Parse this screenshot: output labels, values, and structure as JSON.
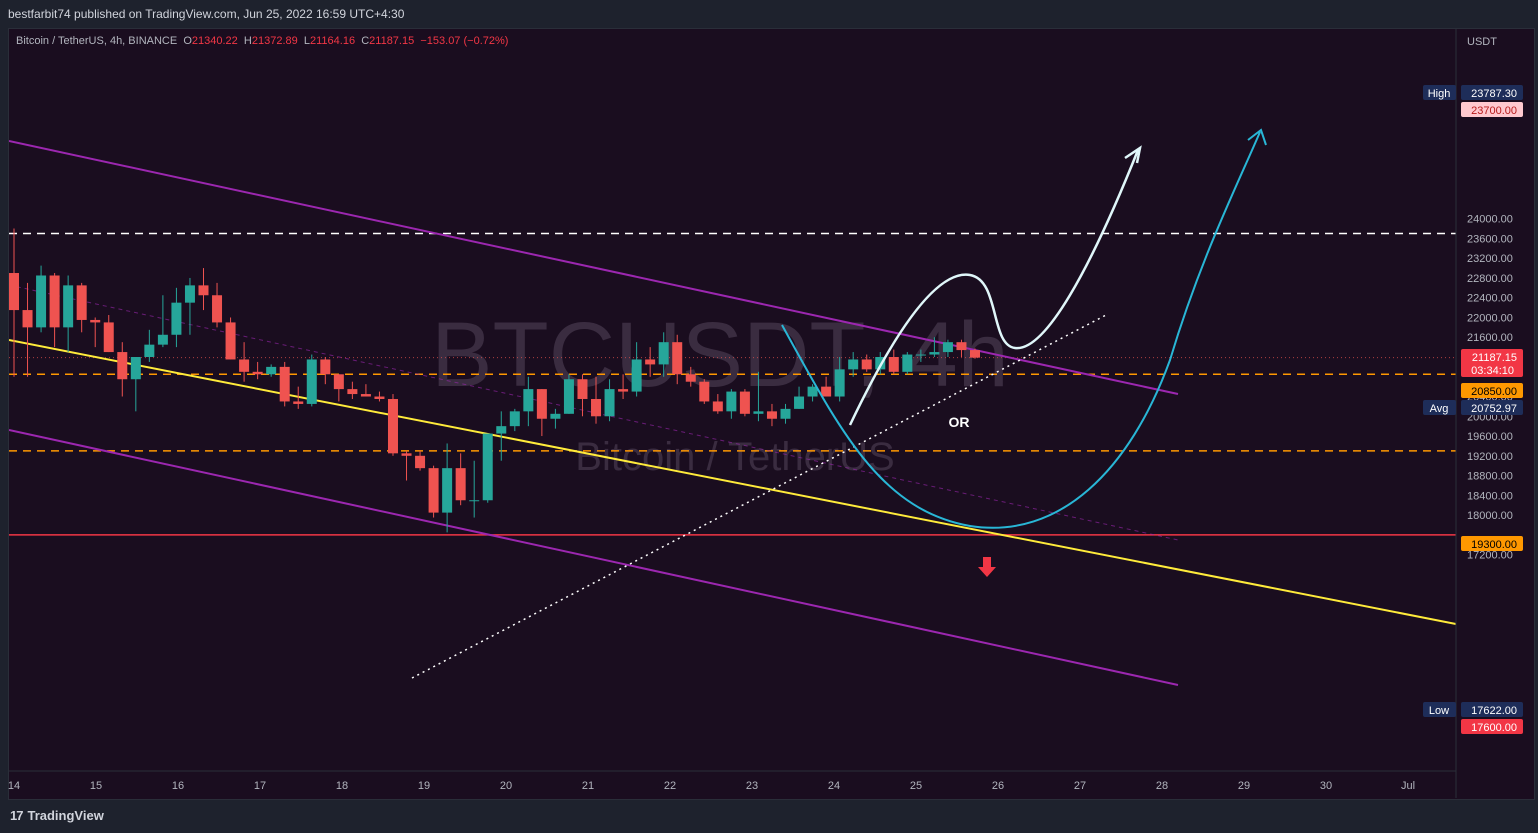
{
  "header": {
    "published": "bestfarbit74 published on TradingView.com, Jun 25, 2022 16:59 UTC+4:30"
  },
  "symbol": {
    "name": "Bitcoin / TetherUS, 4h, BINANCE",
    "o_label": "O",
    "o": "21340.22",
    "h_label": "H",
    "h": "21372.89",
    "l_label": "L",
    "l": "21164.16",
    "c_label": "C",
    "c": "21187.15",
    "change": "−153.07 (−0.72%)"
  },
  "footer": {
    "brand": "TradingView",
    "brand_mark": "17"
  },
  "colors": {
    "background": "#1a0d1f",
    "up": "#26a69a",
    "down": "#ef5350",
    "channel": "#9c27b0",
    "yellow_line": "#ffeb3b",
    "level_orange": "#ff9800",
    "low_line": "#f23645",
    "high_line": "#ffffff",
    "path_white": "#e0f7fa",
    "path_cyan": "#29b6d6"
  },
  "chart_data": {
    "type": "candlestick",
    "symbol": "BTCUSDT",
    "timeframe": "4h",
    "watermark": {
      "symbol": "BTCUSDT, 4h",
      "name": "Bitcoin / TetherUS"
    },
    "currency": "USDT",
    "y_ticks": [
      17200,
      17600,
      18000,
      18400,
      18800,
      19200,
      19600,
      20000,
      20400,
      20800,
      21200,
      21600,
      22000,
      22400,
      22800,
      23200,
      23600,
      24000
    ],
    "y_tick_labels": [
      "17200.00",
      "",
      "18000.00",
      "18400.00",
      "18800.00",
      "19200.00",
      "19600.00",
      "20000.00",
      "20400.00",
      "",
      "",
      "21600.00",
      "22000.00",
      "22400.00",
      "22800.00",
      "23200.00",
      "23600.00",
      "24000.00"
    ],
    "x_ticks": [
      {
        "d": 14,
        "label": "14"
      },
      {
        "d": 15,
        "label": "15"
      },
      {
        "d": 16,
        "label": "16"
      },
      {
        "d": 17,
        "label": "17"
      },
      {
        "d": 18,
        "label": "18"
      },
      {
        "d": 19,
        "label": "19"
      },
      {
        "d": 20,
        "label": "20"
      },
      {
        "d": 21,
        "label": "21"
      },
      {
        "d": 22,
        "label": "22"
      },
      {
        "d": 23,
        "label": "23"
      },
      {
        "d": 24,
        "label": "24"
      },
      {
        "d": 25,
        "label": "25"
      },
      {
        "d": 26,
        "label": "26"
      },
      {
        "d": 27,
        "label": "27"
      },
      {
        "d": 28,
        "label": "28"
      },
      {
        "d": 29,
        "label": "29"
      },
      {
        "d": 30,
        "label": "30"
      },
      {
        "d": 31,
        "label": "Jul"
      }
    ],
    "candles": [
      {
        "o": 22900,
        "h": 23800,
        "l": 20800,
        "c": 22150
      },
      {
        "o": 22150,
        "h": 22700,
        "l": 20800,
        "c": 21800
      },
      {
        "o": 21800,
        "h": 23050,
        "l": 21700,
        "c": 22850
      },
      {
        "o": 22850,
        "h": 22900,
        "l": 21400,
        "c": 21800
      },
      {
        "o": 21800,
        "h": 22850,
        "l": 21300,
        "c": 22650
      },
      {
        "o": 22650,
        "h": 22700,
        "l": 21700,
        "c": 21950
      },
      {
        "o": 21950,
        "h": 22000,
        "l": 21400,
        "c": 21900
      },
      {
        "o": 21900,
        "h": 22050,
        "l": 21300,
        "c": 21300
      },
      {
        "o": 21300,
        "h": 21500,
        "l": 20400,
        "c": 20750
      },
      {
        "o": 20750,
        "h": 21200,
        "l": 20100,
        "c": 21200
      },
      {
        "o": 21200,
        "h": 21750,
        "l": 21100,
        "c": 21450
      },
      {
        "o": 21450,
        "h": 22450,
        "l": 21400,
        "c": 21650
      },
      {
        "o": 21650,
        "h": 22600,
        "l": 21400,
        "c": 22300
      },
      {
        "o": 22300,
        "h": 22800,
        "l": 21650,
        "c": 22650
      },
      {
        "o": 22650,
        "h": 23000,
        "l": 22150,
        "c": 22450
      },
      {
        "o": 22450,
        "h": 22700,
        "l": 21800,
        "c": 21900
      },
      {
        "o": 21900,
        "h": 22000,
        "l": 21150,
        "c": 21150
      },
      {
        "o": 21150,
        "h": 21500,
        "l": 20700,
        "c": 20900
      },
      {
        "o": 20900,
        "h": 21100,
        "l": 20750,
        "c": 20850
      },
      {
        "o": 20850,
        "h": 21050,
        "l": 20800,
        "c": 21000
      },
      {
        "o": 21000,
        "h": 21100,
        "l": 20200,
        "c": 20300
      },
      {
        "o": 20300,
        "h": 20600,
        "l": 20150,
        "c": 20250
      },
      {
        "o": 20250,
        "h": 21250,
        "l": 20200,
        "c": 21150
      },
      {
        "o": 21150,
        "h": 21200,
        "l": 20650,
        "c": 20850
      },
      {
        "o": 20850,
        "h": 20850,
        "l": 20300,
        "c": 20550
      },
      {
        "o": 20550,
        "h": 20700,
        "l": 20350,
        "c": 20450
      },
      {
        "o": 20450,
        "h": 20650,
        "l": 20400,
        "c": 20400
      },
      {
        "o": 20400,
        "h": 20500,
        "l": 20300,
        "c": 20350
      },
      {
        "o": 20350,
        "h": 20450,
        "l": 19200,
        "c": 19250
      },
      {
        "o": 19250,
        "h": 19300,
        "l": 18700,
        "c": 19200
      },
      {
        "o": 19200,
        "h": 19300,
        "l": 18900,
        "c": 18950
      },
      {
        "o": 18950,
        "h": 19000,
        "l": 17950,
        "c": 18050
      },
      {
        "o": 18050,
        "h": 19450,
        "l": 17650,
        "c": 18950
      },
      {
        "o": 18950,
        "h": 19250,
        "l": 18200,
        "c": 18300
      },
      {
        "o": 18300,
        "h": 19100,
        "l": 17950,
        "c": 18300
      },
      {
        "o": 18300,
        "h": 19650,
        "l": 18250,
        "c": 19650
      },
      {
        "o": 19650,
        "h": 20100,
        "l": 19100,
        "c": 19800
      },
      {
        "o": 19800,
        "h": 20150,
        "l": 19700,
        "c": 20100
      },
      {
        "o": 20100,
        "h": 20800,
        "l": 19800,
        "c": 20550
      },
      {
        "o": 20550,
        "h": 20550,
        "l": 19600,
        "c": 19950
      },
      {
        "o": 19950,
        "h": 20150,
        "l": 19750,
        "c": 20050
      },
      {
        "o": 20050,
        "h": 20850,
        "l": 20050,
        "c": 20750
      },
      {
        "o": 20750,
        "h": 20850,
        "l": 20000,
        "c": 20350
      },
      {
        "o": 20350,
        "h": 20800,
        "l": 19850,
        "c": 20000
      },
      {
        "o": 20000,
        "h": 20750,
        "l": 19900,
        "c": 20550
      },
      {
        "o": 20550,
        "h": 20850,
        "l": 20350,
        "c": 20500
      },
      {
        "o": 20500,
        "h": 21500,
        "l": 20400,
        "c": 21150
      },
      {
        "o": 21150,
        "h": 21400,
        "l": 20800,
        "c": 21050
      },
      {
        "o": 21050,
        "h": 21700,
        "l": 20800,
        "c": 21500
      },
      {
        "o": 21500,
        "h": 21650,
        "l": 20650,
        "c": 20850
      },
      {
        "o": 20850,
        "h": 21000,
        "l": 20600,
        "c": 20700
      },
      {
        "o": 20700,
        "h": 20750,
        "l": 20250,
        "c": 20300
      },
      {
        "o": 20300,
        "h": 20450,
        "l": 20050,
        "c": 20100
      },
      {
        "o": 20100,
        "h": 20550,
        "l": 19950,
        "c": 20500
      },
      {
        "o": 20500,
        "h": 20550,
        "l": 20000,
        "c": 20050
      },
      {
        "o": 20050,
        "h": 20900,
        "l": 19900,
        "c": 20100
      },
      {
        "o": 20100,
        "h": 20250,
        "l": 19800,
        "c": 19950
      },
      {
        "o": 19950,
        "h": 20250,
        "l": 19850,
        "c": 20150
      },
      {
        "o": 20150,
        "h": 20600,
        "l": 20150,
        "c": 20400
      },
      {
        "o": 20400,
        "h": 20650,
        "l": 20300,
        "c": 20600
      },
      {
        "o": 20600,
        "h": 20800,
        "l": 20400,
        "c": 20400
      },
      {
        "o": 20400,
        "h": 21200,
        "l": 20300,
        "c": 20950
      },
      {
        "o": 20950,
        "h": 21300,
        "l": 20800,
        "c": 21150
      },
      {
        "o": 21150,
        "h": 21250,
        "l": 20900,
        "c": 20950
      },
      {
        "o": 20950,
        "h": 21300,
        "l": 20850,
        "c": 21200
      },
      {
        "o": 21200,
        "h": 21350,
        "l": 20850,
        "c": 20900
      },
      {
        "o": 20900,
        "h": 21300,
        "l": 20850,
        "c": 21250
      },
      {
        "o": 21250,
        "h": 21350,
        "l": 21100,
        "c": 21250
      },
      {
        "o": 21250,
        "h": 21600,
        "l": 21200,
        "c": 21300
      },
      {
        "o": 21300,
        "h": 21550,
        "l": 21200,
        "c": 21500
      },
      {
        "o": 21500,
        "h": 21550,
        "l": 21200,
        "c": 21340
      },
      {
        "o": 21340.22,
        "h": 21372.89,
        "l": 21164.16,
        "c": 21187.15
      }
    ],
    "levels": [
      {
        "name": "high-line",
        "value": 23700,
        "style": "dashed",
        "color": "#ffffff",
        "label": "23700.00"
      },
      {
        "name": "resistance-20850",
        "value": 20850,
        "style": "dashed",
        "color": "#ff9800",
        "label": "20850.00"
      },
      {
        "name": "support-19300",
        "value": 19300,
        "style": "dashed",
        "color": "#ff9800",
        "label": "19300.00"
      },
      {
        "name": "low-line",
        "value": 17600,
        "style": "solid",
        "color": "#f23645",
        "label": "17600.00"
      }
    ],
    "price_labels": [
      {
        "name": "high",
        "tag": "High",
        "value": "23787.30",
        "y": 23787.3
      },
      {
        "name": "high-level",
        "tag": "",
        "value": "23700.00",
        "y": 23700
      },
      {
        "name": "last",
        "tag": "",
        "value": "21187.15",
        "sub": "03:34:10",
        "y": 21187.15
      },
      {
        "name": "r20850",
        "tag": "",
        "value": "20850.00",
        "y": 20850
      },
      {
        "name": "avg",
        "tag": "Avg",
        "value": "20752.97",
        "y": 20752.97
      },
      {
        "name": "s19300",
        "tag": "",
        "value": "19300.00",
        "y": 19300
      },
      {
        "name": "low",
        "tag": "Low",
        "value": "17622.00",
        "y": 17622
      },
      {
        "name": "low-level",
        "tag": "",
        "value": "17600.00",
        "y": 17600
      }
    ],
    "annotation_text": "OR"
  }
}
